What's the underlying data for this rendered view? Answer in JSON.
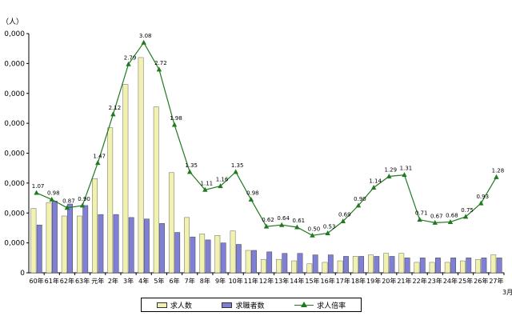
{
  "chart_data": {
    "type": "bar+line",
    "unit_label": "（人）",
    "x_trailing_label": "3月",
    "categories": [
      "60年",
      "61年",
      "62年",
      "63年",
      "元年",
      "2年",
      "3年",
      "4年",
      "5年",
      "6年",
      "7年",
      "8年",
      "9年",
      "10年",
      "11年",
      "12年",
      "13年",
      "14年",
      "15年",
      "16年",
      "17年",
      "18年",
      "19年",
      "20年",
      "21年",
      "22年",
      "23年",
      "24年",
      "25年",
      "26年",
      "27年"
    ],
    "y_ticks": [
      "0",
      "0,000",
      "0,000",
      "0,000",
      "0,000",
      "0,000",
      "0,000",
      "0,000",
      "0,000"
    ],
    "series": [
      {
        "name": "求人数",
        "type": "bar",
        "color": "#f2f2b0",
        "values": [
          215000,
          235000,
          190000,
          190000,
          315000,
          485000,
          630000,
          720000,
          555000,
          335000,
          185000,
          130000,
          125000,
          140000,
          75000,
          45000,
          45000,
          40000,
          30000,
          35000,
          40000,
          55000,
          60000,
          65000,
          65000,
          35000,
          35000,
          35000,
          40000,
          45000,
          60000
        ]
      },
      {
        "name": "求職者数",
        "type": "bar",
        "color": "#7f7fd6",
        "values": [
          160000,
          240000,
          230000,
          225000,
          195000,
          195000,
          185000,
          180000,
          165000,
          135000,
          120000,
          110000,
          100000,
          95000,
          75000,
          70000,
          65000,
          65000,
          60000,
          60000,
          55000,
          55000,
          55000,
          55000,
          50000,
          50000,
          50000,
          50000,
          50000,
          50000,
          50000
        ]
      },
      {
        "name": "求人倍率",
        "type": "line",
        "color": "#1f7a1f",
        "values": [
          1.07,
          0.98,
          0.87,
          0.9,
          1.47,
          2.12,
          2.79,
          3.08,
          2.72,
          1.98,
          1.35,
          1.11,
          1.16,
          1.35,
          0.98,
          0.62,
          0.64,
          0.61,
          0.5,
          0.53,
          0.69,
          0.9,
          1.14,
          1.29,
          1.31,
          0.71,
          0.67,
          0.68,
          0.75,
          0.93,
          1.28
        ],
        "labels": [
          "1.07",
          "0.98",
          "0.87",
          "0.90",
          "1.47",
          "2.12",
          "2.79",
          "3.08",
          "2.72",
          "1.98",
          "1.35",
          "1.11",
          "1.16",
          "1.35",
          "0.98",
          "0.62",
          "0.64",
          "0.61",
          "0.50",
          "0.53",
          "0.69",
          "0.90",
          "1.14",
          "1.29",
          "1.31",
          "0.71",
          "0.67",
          "0.68",
          "0.75",
          "0.93",
          "1.28"
        ]
      }
    ],
    "ylim_left": [
      0,
      800000
    ],
    "ylim_right": [
      0,
      3.2
    ],
    "grid": false,
    "legend_position": "bottom"
  }
}
